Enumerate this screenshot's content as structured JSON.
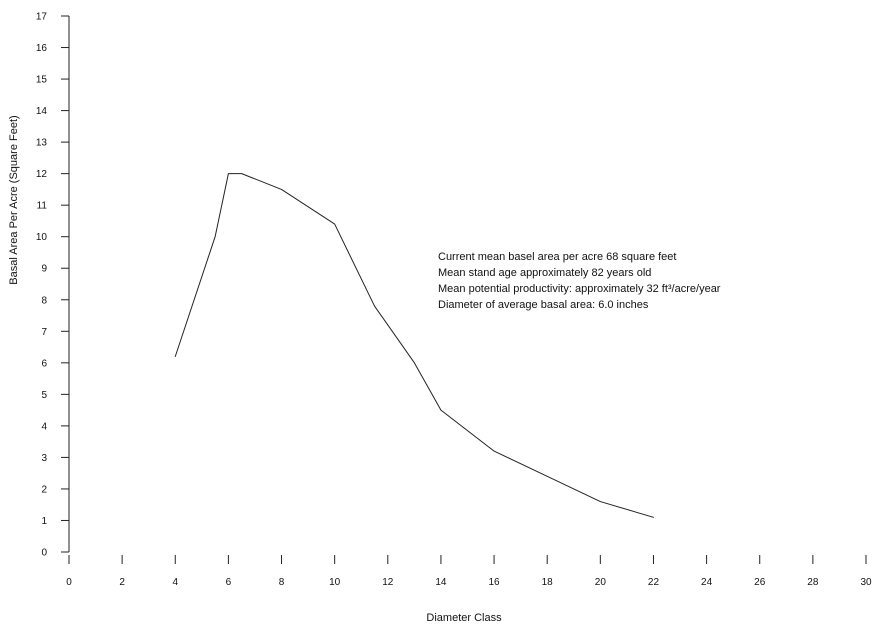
{
  "chart_data": {
    "type": "line",
    "title": "",
    "xlabel": "Diameter Class",
    "ylabel": "Basal Area Per Acre (Square Feet)",
    "xlim": [
      0,
      30
    ],
    "ylim": [
      0,
      17
    ],
    "x_ticks": [
      0,
      2,
      4,
      6,
      8,
      10,
      12,
      14,
      16,
      18,
      20,
      22,
      24,
      26,
      28,
      30
    ],
    "y_ticks": [
      0,
      1,
      2,
      3,
      4,
      5,
      6,
      7,
      8,
      9,
      10,
      11,
      12,
      13,
      14,
      15,
      16,
      17
    ],
    "grid": false,
    "legend": "none",
    "series": [
      {
        "x": [
          4,
          5.5,
          6,
          6.5,
          8,
          10,
          11.5,
          13,
          14,
          16,
          18,
          20,
          22
        ],
        "values": [
          6.2,
          10.0,
          12.0,
          12.0,
          11.5,
          10.4,
          7.8,
          6.0,
          4.5,
          3.2,
          2.4,
          1.6,
          1.1
        ]
      }
    ],
    "annotations": [
      "Current mean basel area per acre  68 square feet",
      "Mean stand age  approximately 82 years old",
      "Mean potential productivity: approximately 32 ft³/acre/year",
      "Diameter of average basal area: 6.0 inches"
    ],
    "colors": {
      "line": "#222222",
      "axis": "#222222",
      "text": "#111111"
    }
  }
}
